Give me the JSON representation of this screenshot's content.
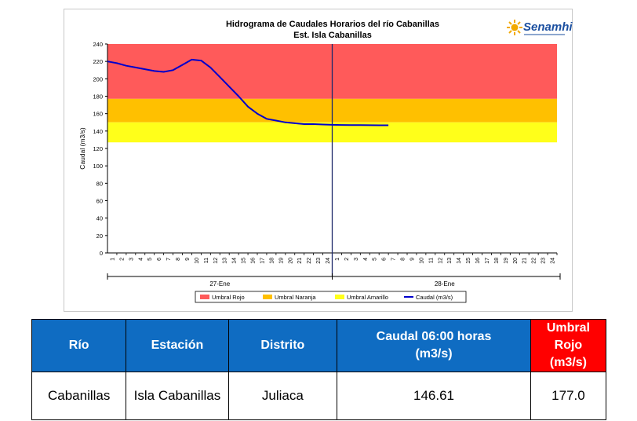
{
  "chart_data": {
    "type": "line",
    "title": "Hidrograma de Caudales Horarios del río Cabanillas",
    "subtitle": "Est. Isla Cabanillas",
    "ylabel": "Caudal  (m3/s)",
    "ylim": [
      0,
      240
    ],
    "yticks": [
      0,
      20,
      40,
      60,
      80,
      100,
      120,
      140,
      160,
      180,
      200,
      220,
      240
    ],
    "x_hours": [
      "1",
      "2",
      "3",
      "4",
      "5",
      "6",
      "7",
      "8",
      "9",
      "10",
      "11",
      "12",
      "13",
      "14",
      "15",
      "16",
      "17",
      "18",
      "19",
      "20",
      "21",
      "22",
      "23",
      "24"
    ],
    "day_labels": [
      "27-Ene",
      "28-Ene"
    ],
    "bands": [
      {
        "name": "Umbral Rojo",
        "from": 177,
        "to": 240,
        "color": "#ff5a5a"
      },
      {
        "name": "Umbral Naranja",
        "from": 150,
        "to": 177,
        "color": "#ffc000"
      },
      {
        "name": "Umbral Amarillo",
        "from": 127,
        "to": 150,
        "color": "#ffff1a"
      }
    ],
    "series": [
      {
        "name": "Caudal (m3/s)",
        "color": "#0000cc",
        "x": [
          1,
          2,
          3,
          4,
          5,
          6,
          7,
          8,
          9,
          10,
          11,
          12,
          13,
          14,
          15,
          16,
          17,
          18,
          19,
          20,
          21,
          22,
          23,
          24,
          25,
          26,
          27,
          28,
          29,
          30,
          31
        ],
        "values": [
          220,
          218,
          215,
          213,
          211,
          209,
          208,
          210,
          216,
          222,
          221,
          213,
          202,
          191,
          180,
          168,
          160,
          154,
          152,
          150,
          149,
          148,
          148,
          147.5,
          147.2,
          147,
          146.9,
          146.8,
          146.7,
          146.65,
          146.61
        ]
      }
    ],
    "legend": [
      "Umbral Rojo",
      "Umbral Naranja",
      "Umbral Amarillo",
      "Caudal (m3/s)"
    ],
    "legend_position": "bottom",
    "grid": false
  },
  "logo": {
    "text": "Senamhi"
  },
  "table": {
    "headers": [
      "Río",
      "Estación",
      "Distrito",
      "Caudal  06:00 horas (m3/s)",
      "Umbral Rojo (m3/s)"
    ],
    "row": [
      "Cabanillas",
      "Isla Cabanillas",
      "Juliaca",
      "146.61",
      "177.0"
    ]
  }
}
